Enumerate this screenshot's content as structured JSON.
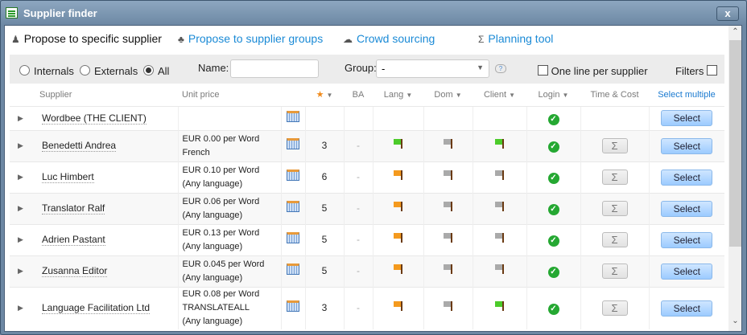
{
  "window": {
    "title": "Supplier finder",
    "close_label": "x"
  },
  "tabs": [
    {
      "label": "Propose to specific supplier",
      "icon": "person-icon",
      "active": true
    },
    {
      "label": "Propose to supplier groups",
      "icon": "group-icon"
    },
    {
      "label": "Crowd sourcing",
      "icon": "cloud-icon"
    },
    {
      "label": "Planning tool",
      "icon": "sigma-icon"
    }
  ],
  "filters": {
    "internals": "Internals",
    "externals": "Externals",
    "all": "All",
    "selected": "All",
    "name_label": "Name:",
    "name_value": "",
    "group_label": "Group:",
    "group_value": "-",
    "one_line": "One line per supplier",
    "filters_label": "Filters"
  },
  "columns": {
    "supplier": "Supplier",
    "unit_price": "Unit price",
    "rating": "★",
    "ba": "BA",
    "lang": "Lang",
    "dom": "Dom",
    "client": "Client",
    "login": "Login",
    "time_cost": "Time & Cost",
    "select_multiple": "Select multiple"
  },
  "select_label": "Select",
  "rows": [
    {
      "name": "Wordbee (THE CLIENT)",
      "price": [],
      "rating": "",
      "ba": "",
      "lang": "",
      "dom": "",
      "client": "",
      "login": true,
      "sigma": false
    },
    {
      "name": "Benedetti Andrea",
      "price": [
        "EUR 0.00 per Word",
        "French"
      ],
      "rating": "3",
      "ba": "-",
      "lang": "green",
      "dom": "gray",
      "client": "green",
      "login": true,
      "sigma": true
    },
    {
      "name": "Luc Himbert",
      "price": [
        "EUR 0.10 per Word",
        "(Any language)"
      ],
      "rating": "6",
      "ba": "-",
      "lang": "orange",
      "dom": "gray",
      "client": "gray",
      "login": true,
      "sigma": true
    },
    {
      "name": "Translator Ralf",
      "price": [
        "EUR 0.06 per Word",
        "(Any language)"
      ],
      "rating": "5",
      "ba": "-",
      "lang": "orange",
      "dom": "gray",
      "client": "gray",
      "login": true,
      "sigma": true
    },
    {
      "name": "Adrien Pastant",
      "price": [
        "EUR 0.13 per Word",
        "(Any language)"
      ],
      "rating": "5",
      "ba": "-",
      "lang": "orange",
      "dom": "gray",
      "client": "gray",
      "login": true,
      "sigma": true
    },
    {
      "name": "Zusanna Editor",
      "price": [
        "EUR 0.045 per Word",
        "(Any language)"
      ],
      "rating": "5",
      "ba": "-",
      "lang": "orange",
      "dom": "gray",
      "client": "gray",
      "login": true,
      "sigma": true
    },
    {
      "name": "Language Facilitation Ltd",
      "price": [
        "EUR 0.08 per Word",
        "TRANSLATEALL",
        "(Any language)"
      ],
      "rating": "3",
      "ba": "-",
      "lang": "orange",
      "dom": "gray",
      "client": "green",
      "login": true,
      "sigma": true
    }
  ]
}
